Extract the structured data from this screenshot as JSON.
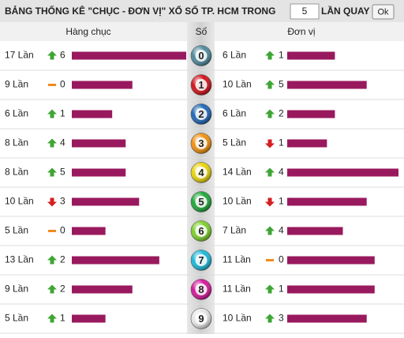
{
  "header": {
    "title": "BẢNG THỐNG KÊ \"CHỤC - ĐƠN VỊ\" XỔ SỐ TP. HCM TRONG",
    "input_value": "5",
    "suffix": "LẦN QUAY",
    "button": "Ok"
  },
  "columns": {
    "left": "Hàng chục",
    "middle": "Số",
    "right": "Đơn vị"
  },
  "bar_color": "#99195e",
  "rows": [
    {
      "digit": "0",
      "ball_color": "#4f8a9c",
      "left": {
        "count": 17,
        "count_label": "17 Lần",
        "trend": "up",
        "change": "6"
      },
      "right": {
        "count": 6,
        "count_label": "6 Lần",
        "trend": "up",
        "change": "1"
      }
    },
    {
      "digit": "1",
      "ball_color": "#d0141c",
      "left": {
        "count": 9,
        "count_label": "9 Lần",
        "trend": "flat",
        "change": "0"
      },
      "right": {
        "count": 10,
        "count_label": "10 Lần",
        "trend": "up",
        "change": "5"
      }
    },
    {
      "digit": "2",
      "ball_color": "#2167b5",
      "left": {
        "count": 6,
        "count_label": "6 Lần",
        "trend": "up",
        "change": "1"
      },
      "right": {
        "count": 6,
        "count_label": "6 Lần",
        "trend": "up",
        "change": "2"
      }
    },
    {
      "digit": "3",
      "ball_color": "#f0900f",
      "left": {
        "count": 8,
        "count_label": "8 Lần",
        "trend": "up",
        "change": "4"
      },
      "right": {
        "count": 5,
        "count_label": "5 Lần",
        "trend": "down",
        "change": "1"
      }
    },
    {
      "digit": "4",
      "ball_color": "#e8d20c",
      "left": {
        "count": 8,
        "count_label": "8 Lần",
        "trend": "up",
        "change": "5"
      },
      "right": {
        "count": 14,
        "count_label": "14 Lần",
        "trend": "up",
        "change": "4"
      }
    },
    {
      "digit": "5",
      "ball_color": "#1fa83a",
      "left": {
        "count": 10,
        "count_label": "10 Lần",
        "trend": "down",
        "change": "3"
      },
      "right": {
        "count": 10,
        "count_label": "10 Lần",
        "trend": "down",
        "change": "1"
      }
    },
    {
      "digit": "6",
      "ball_color": "#7ccf2a",
      "left": {
        "count": 5,
        "count_label": "5 Lần",
        "trend": "flat",
        "change": "0"
      },
      "right": {
        "count": 7,
        "count_label": "7 Lần",
        "trend": "up",
        "change": "4"
      }
    },
    {
      "digit": "7",
      "ball_color": "#1cb8d8",
      "left": {
        "count": 13,
        "count_label": "13 Lần",
        "trend": "up",
        "change": "2"
      },
      "right": {
        "count": 11,
        "count_label": "11 Lần",
        "trend": "flat",
        "change": "0"
      }
    },
    {
      "digit": "8",
      "ball_color": "#d4179a",
      "left": {
        "count": 9,
        "count_label": "9 Lần",
        "trend": "up",
        "change": "2"
      },
      "right": {
        "count": 11,
        "count_label": "11 Lần",
        "trend": "up",
        "change": "1"
      }
    },
    {
      "digit": "9",
      "ball_color": "#e6e6e6",
      "left": {
        "count": 5,
        "count_label": "5 Lần",
        "trend": "up",
        "change": "1"
      },
      "right": {
        "count": 10,
        "count_label": "10 Lần",
        "trend": "up",
        "change": "3"
      }
    }
  ]
}
